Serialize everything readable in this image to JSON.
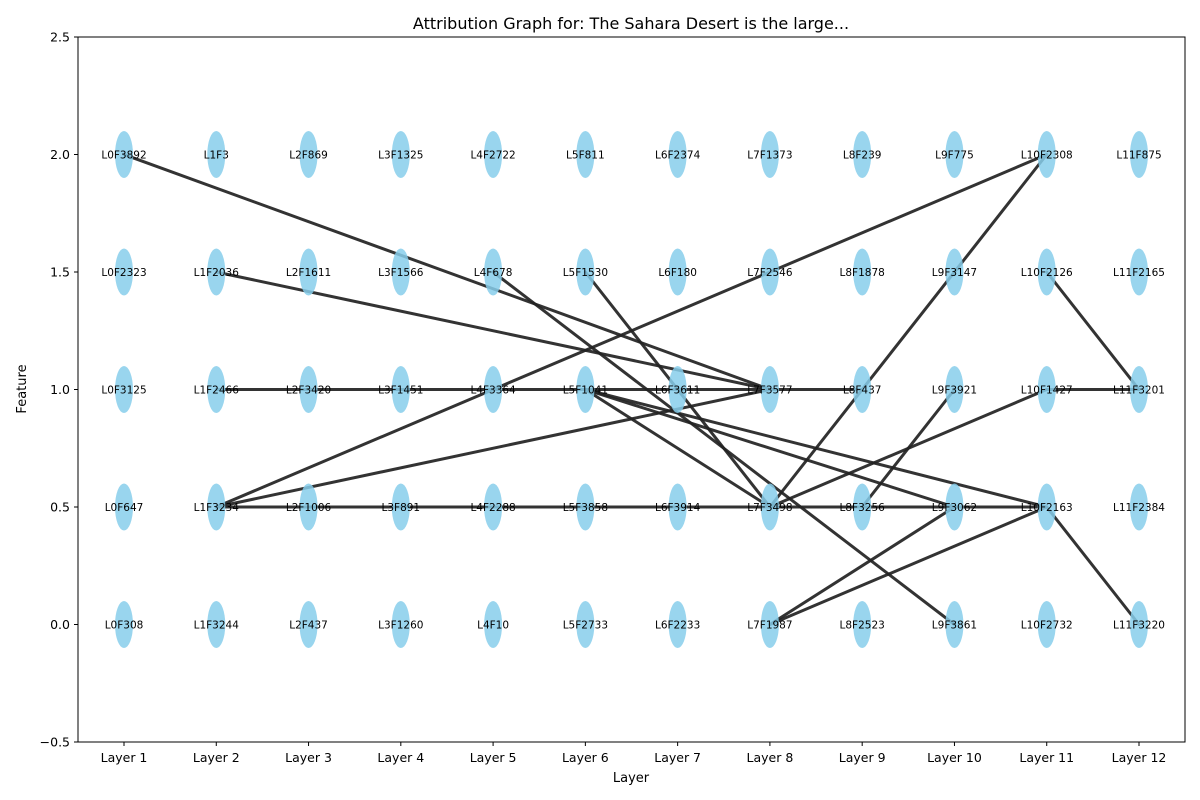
{
  "chart_data": {
    "type": "graph",
    "title": "Attribution Graph for: The Sahara Desert is the large...",
    "xlabel": "Layer",
    "ylabel": "Feature",
    "ylim": [
      -0.5,
      2.5
    ],
    "yticks": [
      "−0.5",
      "0.0",
      "0.5",
      "1.0",
      "1.5",
      "2.0",
      "2.5"
    ],
    "ytick_values": [
      -0.5,
      0.0,
      0.5,
      1.0,
      1.5,
      2.0,
      2.5
    ],
    "layers": [
      "Layer 1",
      "Layer 2",
      "Layer 3",
      "Layer 4",
      "Layer 5",
      "Layer 6",
      "Layer 7",
      "Layer 8",
      "Layer 9",
      "Layer 10",
      "Layer 11",
      "Layer 12"
    ],
    "node_y_values": [
      2.0,
      1.5,
      1.0,
      0.5,
      0.0
    ],
    "node_color": "#87ceeb",
    "edge_color": "#222222",
    "nodes": [
      [
        "L0F3892",
        "L0F2323",
        "L0F3125",
        "L0F647",
        "L0F308"
      ],
      [
        "L1F3",
        "L1F2036",
        "L1F2466",
        "L1F3234",
        "L1F3244"
      ],
      [
        "L2F869",
        "L2F1611",
        "L2F3420",
        "L2F1006",
        "L2F437"
      ],
      [
        "L3F1325",
        "L3F1566",
        "L3F1451",
        "L3F891",
        "L3F1260"
      ],
      [
        "L4F2722",
        "L4F678",
        "L4F3364",
        "L4F2288",
        "L4F10"
      ],
      [
        "L5F811",
        "L5F1530",
        "L5F1041",
        "L5F3858",
        "L5F2733"
      ],
      [
        "L6F2374",
        "L6F180",
        "L6F3611",
        "L6F3914",
        "L6F2233"
      ],
      [
        "L7F1373",
        "L7F2546",
        "L7F3577",
        "L7F3498",
        "L7F1987"
      ],
      [
        "L8F239",
        "L8F1878",
        "L8F437",
        "L8F3256",
        "L8F2523"
      ],
      [
        "L9F775",
        "L9F3147",
        "L9F3921",
        "L9F3062",
        "L9F3861"
      ],
      [
        "L10F2308",
        "L10F2126",
        "L10F1427",
        "L10F2163",
        "L10F2732"
      ],
      [
        "L11F875",
        "L11F2165",
        "L11F3201",
        "L11F2384",
        "L11F3220"
      ]
    ],
    "edges": [
      [
        0,
        2.0,
        7,
        1.0
      ],
      [
        1,
        1.5,
        7,
        1.0
      ],
      [
        1,
        1.0,
        2,
        1.0
      ],
      [
        2,
        1.0,
        3,
        1.0
      ],
      [
        3,
        1.0,
        4,
        1.0
      ],
      [
        4,
        1.0,
        5,
        1.0
      ],
      [
        5,
        1.0,
        6,
        1.0
      ],
      [
        6,
        1.0,
        7,
        1.0
      ],
      [
        7,
        1.0,
        8,
        1.0
      ],
      [
        1,
        0.5,
        2,
        0.5
      ],
      [
        2,
        0.5,
        3,
        0.5
      ],
      [
        3,
        0.5,
        4,
        0.5
      ],
      [
        4,
        0.5,
        5,
        0.5
      ],
      [
        5,
        0.5,
        6,
        0.5
      ],
      [
        6,
        0.5,
        7,
        0.5
      ],
      [
        7,
        0.5,
        8,
        0.5
      ],
      [
        8,
        0.5,
        9,
        0.5
      ],
      [
        9,
        0.5,
        10,
        0.5
      ],
      [
        1,
        0.5,
        7,
        1.0
      ],
      [
        1,
        0.5,
        10,
        2.0
      ],
      [
        4,
        1.5,
        9,
        0.0
      ],
      [
        5,
        1.5,
        7,
        0.5
      ],
      [
        5,
        1.0,
        7,
        0.5
      ],
      [
        5,
        1.0,
        9,
        0.5
      ],
      [
        5,
        1.0,
        10,
        0.5
      ],
      [
        7,
        0.5,
        10,
        2.0
      ],
      [
        7,
        0.5,
        10,
        1.0
      ],
      [
        8,
        0.5,
        9,
        1.0
      ],
      [
        7,
        0.0,
        9,
        0.5
      ],
      [
        7,
        0.0,
        10,
        0.5
      ],
      [
        10,
        1.5,
        11,
        1.0
      ],
      [
        10,
        1.0,
        11,
        1.0
      ],
      [
        10,
        0.5,
        11,
        0.0
      ]
    ]
  }
}
